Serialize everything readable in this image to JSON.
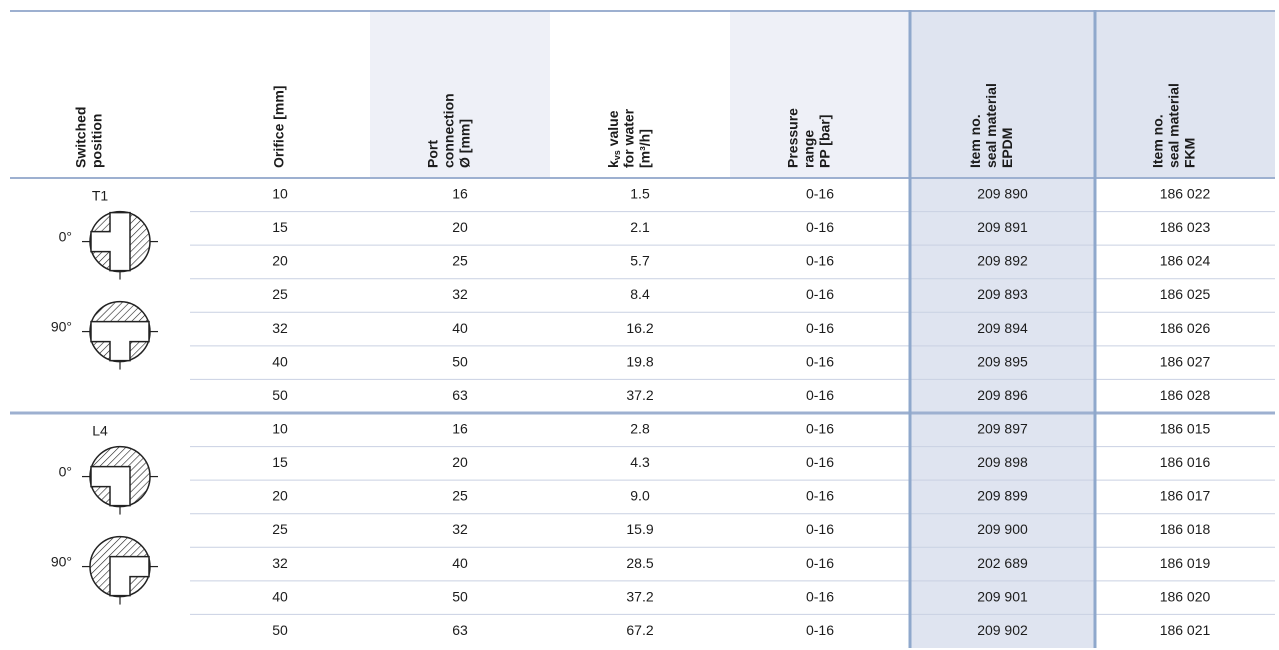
{
  "table": {
    "columns": [
      {
        "lines": [
          "Switched",
          "position"
        ]
      },
      {
        "lines": [
          "Orifice [mm]"
        ]
      },
      {
        "lines": [
          "Port",
          "connection",
          "Ø [mm]"
        ]
      },
      {
        "symbol": "k",
        "subscript": "vs",
        "lines": [
          " value",
          "for water",
          "[m³/h]"
        ]
      },
      {
        "lines": [
          "Pressure",
          "range",
          "PP [bar]"
        ]
      },
      {
        "lines": [
          "Item no.",
          "seal material",
          "EPDM"
        ]
      },
      {
        "lines": [
          "Item no.",
          "seal material",
          "FKM"
        ]
      }
    ],
    "groups": [
      {
        "position": "T1",
        "angles": [
          "0°",
          "90°"
        ],
        "rows": [
          [
            "10",
            "16",
            "1.5",
            "0-16",
            "209 890",
            "186 022"
          ],
          [
            "15",
            "20",
            "2.1",
            "0-16",
            "209 891",
            "186 023"
          ],
          [
            "20",
            "25",
            "5.7",
            "0-16",
            "209 892",
            "186 024"
          ],
          [
            "25",
            "32",
            "8.4",
            "0-16",
            "209 893",
            "186 025"
          ],
          [
            "32",
            "40",
            "16.2",
            "0-16",
            "209 894",
            "186 026"
          ],
          [
            "40",
            "50",
            "19.8",
            "0-16",
            "209 895",
            "186 027"
          ],
          [
            "50",
            "63",
            "37.2",
            "0-16",
            "209 896",
            "186 028"
          ]
        ]
      },
      {
        "position": "L4",
        "angles": [
          "0°",
          "90°"
        ],
        "rows": [
          [
            "10",
            "16",
            "2.8",
            "0-16",
            "209 897",
            "186 015"
          ],
          [
            "15",
            "20",
            "4.3",
            "0-16",
            "209 898",
            "186 016"
          ],
          [
            "20",
            "25",
            "9.0",
            "0-16",
            "209 899",
            "186 017"
          ],
          [
            "25",
            "32",
            "15.9",
            "0-16",
            "209 900",
            "186 018"
          ],
          [
            "32",
            "40",
            "28.5",
            "0-16",
            "202 689",
            "186 019"
          ],
          [
            "40",
            "50",
            "37.2",
            "0-16",
            "209 901",
            "186 020"
          ],
          [
            "50",
            "63",
            "67.2",
            "0-16",
            "209 902",
            "186 021"
          ]
        ]
      }
    ]
  }
}
